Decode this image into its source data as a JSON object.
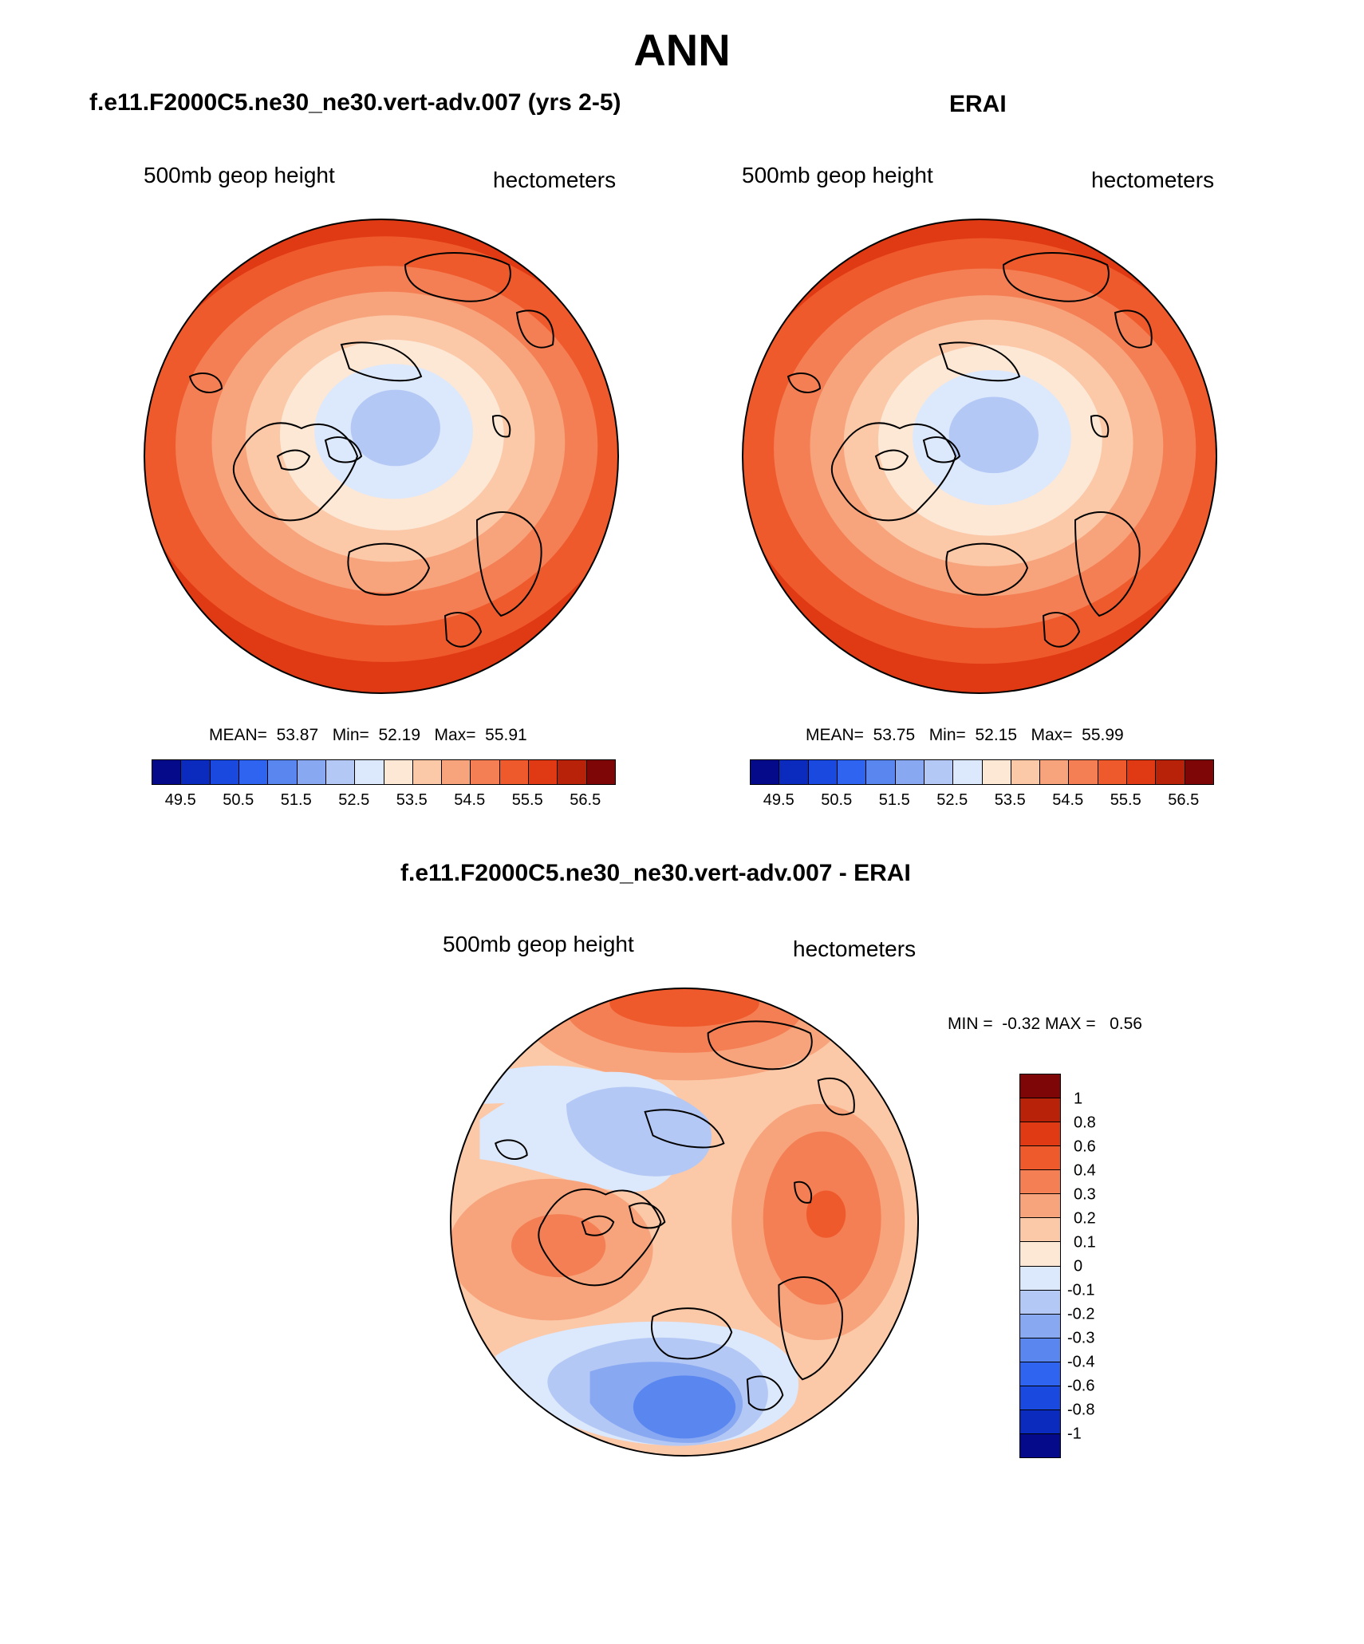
{
  "figure": {
    "title": "ANN"
  },
  "panels": {
    "model": {
      "title": "f.e11.F2000C5.ne30_ne30.vert-adv.007 (yrs 2-5)",
      "left_label": "500mb geop height",
      "right_label": "hectometers",
      "stats": {
        "mean_label": "MEAN=",
        "mean": "53.87",
        "min_label": "Min=",
        "min": "52.19",
        "max_label": "Max=",
        "max": "55.91"
      }
    },
    "obs": {
      "title": "ERAI",
      "left_label": "500mb geop height",
      "right_label": "hectometers",
      "stats": {
        "mean_label": "MEAN=",
        "mean": "53.75",
        "min_label": "Min=",
        "min": "52.15",
        "max_label": "Max=",
        "max": "55.99"
      }
    },
    "diff": {
      "title": "f.e11.F2000C5.ne30_ne30.vert-adv.007 - ERAI",
      "left_label": "500mb geop height",
      "right_label": "hectometers",
      "minmax": {
        "min_label": "MIN =",
        "min": "-0.32",
        "max_label": "MAX =",
        "max": "0.56"
      }
    }
  },
  "colorbars": {
    "abs": {
      "labels": [
        "49.5",
        "50.5",
        "51.5",
        "52.5",
        "53.5",
        "54.5",
        "55.5",
        "56.5"
      ],
      "colors": [
        "#040a8a",
        "#0a2bbe",
        "#1a49df",
        "#2e64f0",
        "#5a86f0",
        "#88a8f2",
        "#b4c8f5",
        "#dce8fb",
        "#fde8d6",
        "#fbc8a8",
        "#f7a47c",
        "#f47f54",
        "#ef5a2c",
        "#e03a14",
        "#b82208",
        "#7e0606"
      ]
    },
    "diff": {
      "labels": [
        "1",
        "0.8",
        "0.6",
        "0.4",
        "0.3",
        "0.2",
        "0.1",
        "0",
        "-0.1",
        "-0.2",
        "-0.3",
        "-0.4",
        "-0.6",
        "-0.8",
        "-1"
      ],
      "colors": [
        "#7e0606",
        "#b82208",
        "#e03a14",
        "#ef5a2c",
        "#f47f54",
        "#f7a47c",
        "#fbc8a8",
        "#fde8d6",
        "#dce8fb",
        "#b4c8f5",
        "#88a8f2",
        "#5a86f0",
        "#2e64f0",
        "#1a49df",
        "#0a2bbe",
        "#040a8a"
      ]
    }
  },
  "map_colors": {
    "ring_abs": [
      "#b82208",
      "#e03a14",
      "#ef5a2c",
      "#f47f54",
      "#f7a47c",
      "#fbc8a8",
      "#fde8d6",
      "#dce8fb",
      "#b4c8f5"
    ],
    "land_stroke": "#000000"
  }
}
